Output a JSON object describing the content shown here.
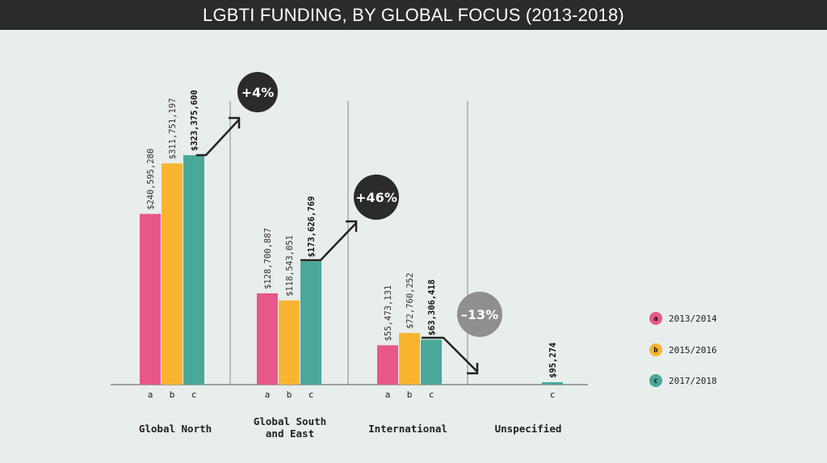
{
  "title": "LGBTI FUNDING, BY GLOBAL FOCUS (2013-2018)",
  "chart_data": {
    "type": "bar",
    "title": "LGBTI FUNDING, BY GLOBAL FOCUS (2013-2018)",
    "xlabel": "",
    "ylabel": "",
    "grid": false,
    "legend_position": "right",
    "categories": [
      "Global North",
      "Global South and East",
      "International",
      "Unspecified"
    ],
    "series": [
      {
        "key": "a",
        "name": "2013/2014",
        "color": "#e8578a",
        "values": [
          240595280,
          128700887,
          55473131,
          null
        ],
        "labels": [
          "$240,595,280",
          "$128,700,887",
          "$55,473,131",
          ""
        ]
      },
      {
        "key": "b",
        "name": "2015/2016",
        "color": "#f9b531",
        "values": [
          311751197,
          118543051,
          72760252,
          null
        ],
        "labels": [
          "$311,751,197",
          "$118,543,051",
          "$72,760,252",
          ""
        ]
      },
      {
        "key": "c",
        "name": "2017/2018",
        "color": "#4aa89b",
        "values": [
          323375600,
          173626769,
          63306418,
          95274
        ],
        "labels": [
          "$323,375,600",
          "$173,626,769",
          "$63,306,418",
          "$95,274"
        ]
      }
    ],
    "changes": [
      {
        "category": "Global North",
        "label": "+4%",
        "direction": "up",
        "badge_color": "#2b2b2b"
      },
      {
        "category": "Global South and East",
        "label": "+46%",
        "direction": "up",
        "badge_color": "#2b2b2b"
      },
      {
        "category": "International",
        "label": "–13%",
        "direction": "down",
        "badge_color": "#8f8f8f"
      }
    ],
    "ylim": [
      0,
      330000000
    ]
  }
}
